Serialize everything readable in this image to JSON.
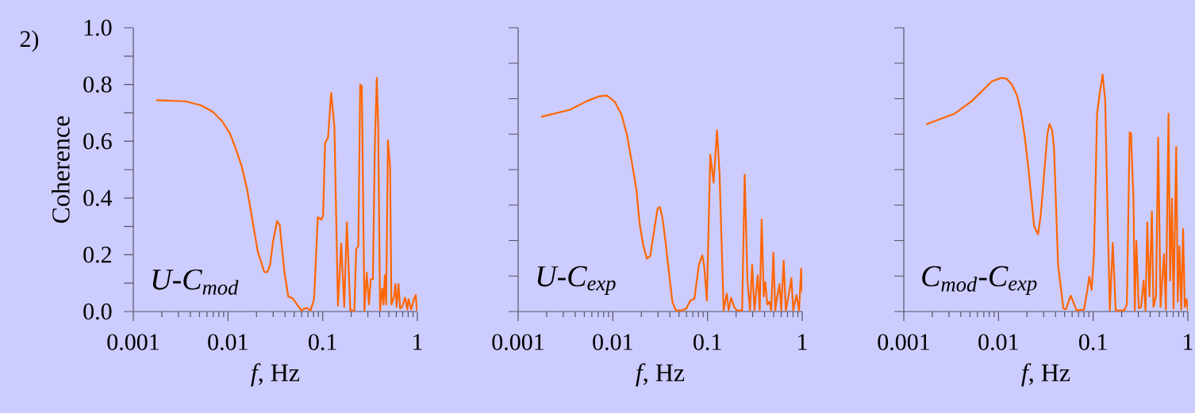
{
  "chart_data": [
    {
      "type": "line",
      "title": "2)",
      "xlabel": "*f*, Hz",
      "ylabel": "Coherence",
      "annotations": [
        "U-C$_{mod}$"
      ],
      "log": "x",
      "grid": false,
      "marker": "none",
      "line_style": "solid",
      "xlim": [
        0.001,
        1
      ],
      "ylim": [
        0,
        1
      ],
      "xticks": [
        0.001,
        0.01,
        0.1,
        1
      ],
      "yticks": [
        {
          "value": 0,
          "label": "0.0"
        },
        {
          "value": 0.1,
          "label": null
        },
        {
          "value": 0.2,
          "label": "0.2"
        },
        {
          "value": 0.3,
          "label": null
        },
        {
          "value": 0.4,
          "label": "0.4"
        },
        {
          "value": 0.5,
          "label": null
        },
        {
          "value": 0.6,
          "label": "0.6"
        },
        {
          "value": 0.7,
          "label": null
        },
        {
          "value": 0.8,
          "label": "0.8"
        },
        {
          "value": 0.9,
          "label": null
        },
        {
          "value": 1,
          "label": "1.0"
        }
      ],
      "x": [
        0.00175,
        0.00351,
        0.00516,
        0.0069,
        0.00865,
        0.0105,
        0.0119,
        0.014,
        0.0159,
        0.0175,
        0.0206,
        0.0242,
        0.0261,
        0.0279,
        0.0297,
        0.033,
        0.0352,
        0.0392,
        0.0433,
        0.0485,
        0.0524,
        0.0596,
        0.0678,
        0.0746,
        0.0811,
        0.0889,
        0.0966,
        0.101,
        0.106,
        0.114,
        0.123,
        0.133,
        0.145,
        0.157,
        0.169,
        0.18,
        0.196,
        0.216,
        0.226,
        0.238,
        0.249,
        0.259,
        0.276,
        0.292,
        0.308,
        0.322,
        0.339,
        0.356,
        0.373,
        0.385,
        0.404,
        0.425,
        0.439,
        0.453,
        0.468,
        0.489,
        0.515,
        0.532,
        0.568,
        0.586,
        0.605,
        0.632,
        0.658,
        0.689,
        0.743,
        0.783,
        0.807,
        0.861,
        0.92,
        0.962,
        0.986
      ],
      "series": [
        {
          "color": "#ff6600",
          "values": [
            0.745,
            0.741,
            0.727,
            0.704,
            0.671,
            0.627,
            0.58,
            0.51,
            0.431,
            0.352,
            0.212,
            0.139,
            0.139,
            0.165,
            0.24,
            0.319,
            0.305,
            0.146,
            0.053,
            0.046,
            0.03,
            0.004,
            0.013,
            0.004,
            0.044,
            0.333,
            0.324,
            0.338,
            0.594,
            0.613,
            0.771,
            0.65,
            0.021,
            0.24,
            0.016,
            0.314,
            0.004,
            0.004,
            0.221,
            0.23,
            0.799,
            0.795,
            0.004,
            0.137,
            0.025,
            0.114,
            0.114,
            0.594,
            0.823,
            0.669,
            0.004,
            0.081,
            0.025,
            0.128,
            0.025,
            0.604,
            0.51,
            0.025,
            0.053,
            0.097,
            0.016,
            0.097,
            0.011,
            0.016,
            0.049,
            0.007,
            0.044,
            0.007,
            0.044,
            0.058,
            0.004
          ]
        }
      ]
    },
    {
      "type": "line",
      "xlabel": "*f*, Hz",
      "annotations": [
        "U-C$_{exp}$"
      ],
      "log": "x",
      "grid": false,
      "marker": "none",
      "line_style": "solid",
      "tick_labels": "x",
      "xlim": [
        0.001,
        1
      ],
      "ylim": [
        0,
        1
      ],
      "xticks": [
        0.001,
        0.01,
        0.1,
        1
      ],
      "yticks": [
        {
          "value": 0,
          "label": null
        },
        {
          "value": 0.125,
          "label": null
        },
        {
          "value": 0.25,
          "label": null
        },
        {
          "value": 0.375,
          "label": null
        },
        {
          "value": 0.5,
          "label": null
        },
        {
          "value": 0.625,
          "label": null
        },
        {
          "value": 0.75,
          "label": null
        },
        {
          "value": 0.875,
          "label": null
        },
        {
          "value": 1,
          "label": null
        }
      ],
      "x": [
        0.00175,
        0.00352,
        0.00535,
        0.00714,
        0.00867,
        0.0105,
        0.0124,
        0.0141,
        0.016,
        0.0178,
        0.0191,
        0.0209,
        0.0229,
        0.0248,
        0.0273,
        0.0297,
        0.0314,
        0.0335,
        0.0362,
        0.0394,
        0.0425,
        0.0463,
        0.0543,
        0.0598,
        0.0659,
        0.0726,
        0.0811,
        0.0881,
        0.0922,
        0.0984,
        0.107,
        0.116,
        0.126,
        0.134,
        0.148,
        0.16,
        0.167,
        0.178,
        0.191,
        0.204,
        0.232,
        0.247,
        0.264,
        0.281,
        0.296,
        0.313,
        0.339,
        0.356,
        0.373,
        0.393,
        0.408,
        0.428,
        0.45,
        0.471,
        0.496,
        0.519,
        0.542,
        0.575,
        0.601,
        0.637,
        0.671,
        0.716,
        0.769,
        0.804,
        0.869,
        0.927,
        0.975,
        1.0
      ],
      "series": [
        {
          "color": "#ff6600",
          "values": [
            0.686,
            0.711,
            0.742,
            0.758,
            0.761,
            0.739,
            0.692,
            0.622,
            0.52,
            0.426,
            0.314,
            0.235,
            0.186,
            0.195,
            0.286,
            0.363,
            0.368,
            0.328,
            0.24,
            0.128,
            0.035,
            0.004,
            0.004,
            0.011,
            0.039,
            0.044,
            0.165,
            0.198,
            0.16,
            0.039,
            0.552,
            0.454,
            0.639,
            0.482,
            0.004,
            0.063,
            0.004,
            0.049,
            0.016,
            0.004,
            0.004,
            0.482,
            0.109,
            0.004,
            0.165,
            0.004,
            0.128,
            0.004,
            0.324,
            0.053,
            0.104,
            0.025,
            0.035,
            0.004,
            0.207,
            0.004,
            0.049,
            0.097,
            0.004,
            0.179,
            0.004,
            0.053,
            0.118,
            0.004,
            0.058,
            0.004,
            0.151,
            0.067
          ]
        }
      ]
    },
    {
      "type": "line",
      "xlabel": "*f*, Hz",
      "annotations": [
        "C$_{mod}$-C$_{exp}$"
      ],
      "log": "x",
      "grid": false,
      "marker": "none",
      "line_style": "solid",
      "tick_labels": "x",
      "xlim": [
        0.001,
        1
      ],
      "ylim": [
        0,
        1
      ],
      "xticks": [
        0.001,
        0.01,
        0.1,
        1
      ],
      "yticks": [
        {
          "value": 0,
          "label": null
        },
        {
          "value": 0.125,
          "label": null
        },
        {
          "value": 0.25,
          "label": null
        },
        {
          "value": 0.375,
          "label": null
        },
        {
          "value": 0.5,
          "label": null
        },
        {
          "value": 0.625,
          "label": null
        },
        {
          "value": 0.75,
          "label": null
        },
        {
          "value": 0.875,
          "label": null
        },
        {
          "value": 1,
          "label": null
        }
      ],
      "x": [
        0.00172,
        0.00344,
        0.00524,
        0.00849,
        0.0106,
        0.0121,
        0.0138,
        0.0157,
        0.0173,
        0.019,
        0.0209,
        0.0238,
        0.0262,
        0.028,
        0.0329,
        0.0346,
        0.0369,
        0.0386,
        0.0426,
        0.0484,
        0.0516,
        0.058,
        0.0668,
        0.08,
        0.0865,
        0.091,
        0.0964,
        0.102,
        0.11,
        0.118,
        0.126,
        0.134,
        0.143,
        0.15,
        0.161,
        0.173,
        0.213,
        0.227,
        0.243,
        0.251,
        0.267,
        0.275,
        0.286,
        0.303,
        0.32,
        0.341,
        0.357,
        0.373,
        0.393,
        0.417,
        0.433,
        0.461,
        0.486,
        0.515,
        0.56,
        0.586,
        0.625,
        0.65,
        0.68,
        0.706,
        0.754,
        0.783,
        0.815,
        0.852,
        0.891,
        0.927,
        0.968,
        1.0
      ],
      "series": [
        {
          "color": "#ff6600",
          "values": [
            0.66,
            0.697,
            0.742,
            0.811,
            0.823,
            0.821,
            0.801,
            0.762,
            0.701,
            0.613,
            0.492,
            0.3,
            0.272,
            0.342,
            0.627,
            0.661,
            0.639,
            0.576,
            0.165,
            0.011,
            0.008,
            0.056,
            0.004,
            0.007,
            0.072,
            0.123,
            0.076,
            0.202,
            0.697,
            0.776,
            0.835,
            0.744,
            0.296,
            0.004,
            0.242,
            0.004,
            0.004,
            0.025,
            0.632,
            0.627,
            0.389,
            0.004,
            0.249,
            0.011,
            0.016,
            0.109,
            0.004,
            0.314,
            0.053,
            0.352,
            0.016,
            0.053,
            0.613,
            0.016,
            0.202,
            0.007,
            0.697,
            0.109,
            0.398,
            0.011,
            0.58,
            0.035,
            0.23,
            0.007,
            0.291,
            0.016,
            0.044,
            0.004
          ]
        }
      ]
    }
  ]
}
